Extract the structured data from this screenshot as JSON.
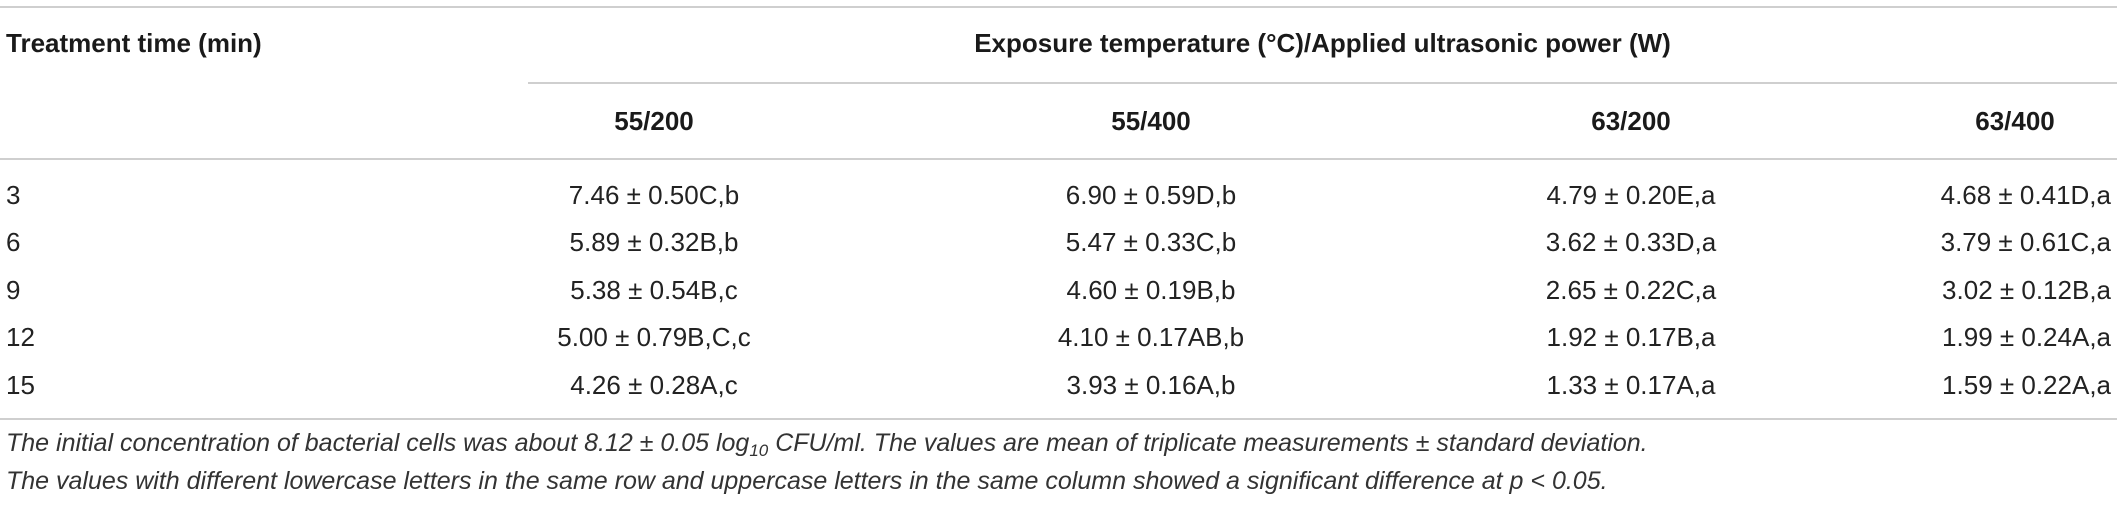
{
  "table": {
    "time_header": "Treatment time (min)",
    "group_header": "Exposure temperature (°C)/Applied ultrasonic power (W)",
    "columns": [
      "55/200",
      "55/400",
      "63/200",
      "63/400"
    ],
    "rows": [
      {
        "time": "3",
        "values": [
          "7.46 ± 0.50C,b",
          "6.90 ± 0.59D,b",
          "4.79 ± 0.20E,a",
          "4.68 ± 0.41D,a"
        ]
      },
      {
        "time": "6",
        "values": [
          "5.89 ± 0.32B,b",
          "5.47 ± 0.33C,b",
          "3.62 ± 0.33D,a",
          "3.79 ± 0.61C,a"
        ]
      },
      {
        "time": "9",
        "values": [
          "5.38 ± 0.54B,c",
          "4.60 ± 0.19B,b",
          "2.65 ± 0.22C,a",
          "3.02 ± 0.12B,a"
        ]
      },
      {
        "time": "12",
        "values": [
          "5.00 ± 0.79B,C,c",
          "4.10 ± 0.17AB,b",
          "1.92 ± 0.17B,a",
          "1.99 ± 0.24A,a"
        ]
      },
      {
        "time": "15",
        "values": [
          "4.26 ± 0.28A,c",
          "3.93 ± 0.16A,b",
          "1.33 ± 0.17A,a",
          "1.59 ± 0.22A,a"
        ]
      }
    ]
  },
  "footnotes": {
    "line1_before": "The initial concentration of bacterial cells was about 8.12 ± 0.05 log",
    "line1_sub": "10",
    "line1_after": " CFU/ml. The values are mean of triplicate measurements ± standard deviation.",
    "line2": "The values with different lowercase letters in the same row and uppercase letters in the same column showed a significant difference at p < 0.05."
  }
}
